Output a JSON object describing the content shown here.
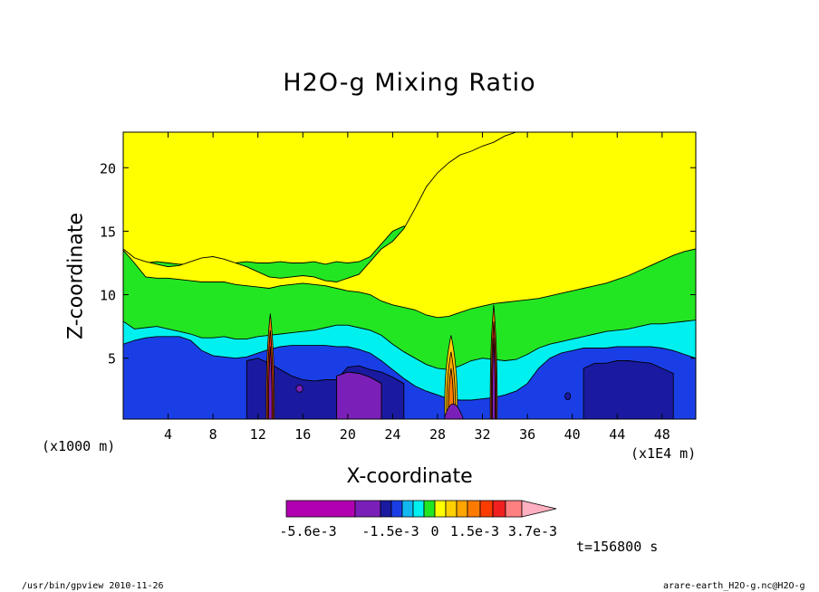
{
  "chart_data": {
    "type": "heatmap",
    "title": "H2O-g Mixing Ratio",
    "xlabel": "X-coordinate",
    "ylabel": "Z-coordinate",
    "x_unit_left": "(x1000 m)",
    "x_unit_right": "(x1E4 m)",
    "x_ticks": [
      4,
      8,
      12,
      16,
      20,
      24,
      28,
      32,
      36,
      40,
      44,
      48
    ],
    "y_ticks": [
      5,
      10,
      15,
      20
    ],
    "xlim": [
      0,
      51
    ],
    "ylim": [
      0.2,
      22.8
    ],
    "colorbar": {
      "labels": [
        "-5.6e-3",
        "-1.5e-3",
        "0",
        "1.5e-3",
        "3.7e-3"
      ],
      "colors": [
        "#b000b0",
        "#7a20b8",
        "#1a1aa0",
        "#1a3ee6",
        "#12b8f0",
        "#00f0f0",
        "#22e622",
        "#ffff00",
        "#ffd000",
        "#ffa500",
        "#ff7a00",
        "#ff3c00",
        "#f02020",
        "#ff8080",
        "#ffb0c0"
      ]
    },
    "bands": [
      {
        "name": "green",
        "color": "#22e622",
        "top": [
          13.5,
          12.8,
          12.5,
          12.6,
          12.5,
          12.4,
          12.4,
          12.4,
          12.3,
          12.2,
          12.5,
          12.6,
          12.5,
          12.5,
          12.6,
          12.5,
          12.5,
          12.6,
          12.4,
          12.6,
          12.5,
          12.6,
          13,
          14,
          15,
          15.4,
          14.8,
          14.1,
          13.2,
          12.6,
          12.3,
          12.2,
          12.2,
          12.2,
          12.1,
          12,
          12,
          12.1,
          12,
          12.1,
          12.2,
          12.1,
          12.1,
          12.1,
          12.2,
          12.1,
          12.3,
          12.6,
          12.7,
          12.8,
          12.5,
          12.6
        ]
      },
      {
        "name": "yellow-inner",
        "color": "#ffff00",
        "top": [
          13.6,
          12.9,
          12.6,
          12.4,
          12.2,
          12.3,
          12.6,
          12.9,
          13,
          12.8,
          12.5,
          12.2,
          11.8,
          11.4,
          11.3,
          11.4,
          11.5,
          11.4,
          11.1,
          11,
          11.3,
          11.6,
          12.6,
          13.6,
          14.2,
          15.2,
          16.8,
          18.5,
          19.6,
          20.4,
          21,
          21.3,
          21.7,
          22,
          22.5,
          22.8,
          22.8,
          22.8,
          22.8,
          22.8,
          22.8,
          22.8,
          22.8,
          22.8,
          22.8,
          22.8,
          22.8,
          22.8,
          22.8,
          22.8,
          22.8,
          22.8
        ]
      },
      {
        "name": "light-green",
        "color": "#22e622",
        "top": [
          13.5,
          12.5,
          11.4,
          11.3,
          11.3,
          11.2,
          11.1,
          11,
          11,
          11,
          10.8,
          10.7,
          10.6,
          10.5,
          10.7,
          10.8,
          10.9,
          10.8,
          10.7,
          10.5,
          10.3,
          10.2,
          10,
          9.5,
          9.2,
          9,
          8.8,
          8.4,
          8.2,
          8.3,
          8.6,
          8.9,
          9.1,
          9.3,
          9.4,
          9.5,
          9.6,
          9.7,
          9.9,
          10.1,
          10.3,
          10.5,
          10.7,
          10.9,
          11.2,
          11.5,
          11.9,
          12.3,
          12.7,
          13.1,
          13.4,
          13.6
        ]
      },
      {
        "name": "cyan",
        "color": "#00f0f0",
        "top": [
          7.9,
          7.3,
          7.4,
          7.5,
          7.3,
          7.1,
          6.9,
          6.6,
          6.6,
          6.7,
          6.5,
          6.5,
          6.7,
          6.8,
          6.9,
          7,
          7.1,
          7.2,
          7.4,
          7.6,
          7.6,
          7.4,
          7.2,
          6.8,
          6.1,
          5.5,
          5,
          4.5,
          4.2,
          4.1,
          4.4,
          4.8,
          5,
          4.9,
          4.8,
          4.9,
          5.3,
          5.8,
          6.1,
          6.3,
          6.5,
          6.7,
          6.9,
          7.1,
          7.2,
          7.3,
          7.5,
          7.7,
          7.7,
          7.8,
          7.9,
          8
        ]
      },
      {
        "name": "blue",
        "color": "#1a3ee6",
        "top": [
          6.1,
          6.4,
          6.6,
          6.7,
          6.7,
          6.7,
          6.4,
          5.6,
          5.2,
          5.1,
          5,
          5.1,
          5.4,
          5.7,
          5.9,
          6,
          6,
          6,
          6,
          5.9,
          5.9,
          5.7,
          5.4,
          4.8,
          4.1,
          3.4,
          2.8,
          2.4,
          2.1,
          1.8,
          1.7,
          1.7,
          1.8,
          1.9,
          2.1,
          2.4,
          3,
          4.2,
          5,
          5.4,
          5.6,
          5.8,
          5.8,
          5.8,
          5.9,
          5.9,
          5.9,
          5.9,
          5.8,
          5.6,
          5.3,
          5
        ]
      },
      {
        "name": "dark-blue",
        "color": "#1a1aa0",
        "top": [
          0,
          0,
          0,
          0,
          0,
          0,
          0,
          0,
          0,
          0,
          0,
          4.8,
          5,
          4.6,
          4.1,
          3.6,
          3.3,
          3.2,
          3.3,
          3.3,
          4.3,
          4.4,
          4.1,
          3.9,
          3.5,
          3,
          0,
          0,
          0,
          0,
          0,
          0,
          0,
          0,
          0,
          0,
          0,
          0,
          0,
          0,
          0,
          4.2,
          4.6,
          4.6,
          4.8,
          4.8,
          4.7,
          4.6,
          4.2,
          3.8,
          0,
          0
        ]
      },
      {
        "name": "purple",
        "color": "#7a20b8",
        "top": [
          0,
          0,
          0,
          0,
          0,
          0,
          0,
          0,
          0,
          0,
          0,
          0,
          0,
          0,
          0,
          0,
          0,
          0,
          0,
          3.6,
          3.9,
          3.8,
          3.5,
          3,
          0,
          0,
          0,
          0,
          0,
          0,
          0,
          0,
          0,
          0,
          0,
          0,
          0,
          0,
          0,
          0,
          0,
          0,
          0,
          0,
          0,
          0,
          0,
          0,
          0,
          0,
          0,
          0
        ]
      }
    ]
  },
  "footer": {
    "time": "t=156800 s",
    "left_info": "/usr/bin/gpview  2010-11-26",
    "right_info": "arare-earth_H2O-g.nc@H2O-g"
  },
  "colors": {
    "background": "#ffffff",
    "axis": "#000000"
  }
}
